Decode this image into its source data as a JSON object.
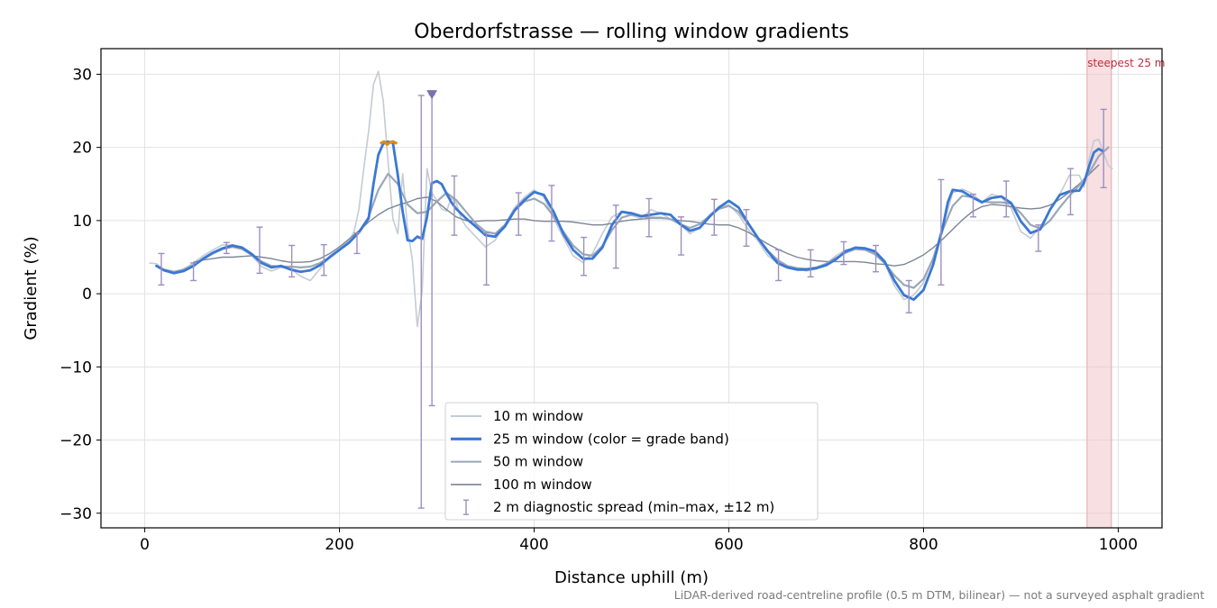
{
  "chart_data": {
    "type": "line",
    "title": "Oberdorfstrasse — rolling window gradients",
    "xlabel": "Distance uphill (m)",
    "ylabel": "Gradient (%)",
    "xlim": [
      -45,
      1045
    ],
    "ylim": [
      -32,
      33.5
    ],
    "x_ticks": [
      0,
      200,
      400,
      600,
      800,
      1000
    ],
    "y_ticks": [
      -30,
      -20,
      -10,
      0,
      10,
      20,
      30
    ],
    "x_tick_labels": [
      "0",
      "200",
      "400",
      "600",
      "800",
      "1000"
    ],
    "y_tick_labels": [
      "−30",
      "−20",
      "−10",
      "0",
      "10",
      "20",
      "30"
    ],
    "grid": true,
    "legend_position": "bottom-center",
    "footnote": "LiDAR-derived road-centreline profile (0.5 m DTM, bilinear) — not a surveyed asphalt gradient",
    "colors": {
      "w10": "#c4cbd3",
      "w25": "#3a78d4",
      "w25_steep": "#e08a14",
      "w50": "#9aa7b6",
      "w100": "#7c8694",
      "errorbar": "#9d8fc0",
      "marker": "#7f6fae",
      "highlight": "#f1c4cb",
      "highlight_text": "#c0303a"
    },
    "highlight": {
      "x_range": [
        968,
        993
      ],
      "label": "steepest 25 m"
    },
    "outlier_marker": {
      "x": 295,
      "y": 27.2
    },
    "series": [
      {
        "name": "10 m window",
        "x": [
          5,
          12,
          20,
          30,
          40,
          50,
          60,
          70,
          80,
          90,
          100,
          110,
          120,
          130,
          140,
          150,
          160,
          170,
          180,
          190,
          200,
          210,
          215,
          220,
          225,
          230,
          235,
          240,
          245,
          250,
          255,
          260,
          265,
          270,
          275,
          280,
          285,
          290,
          295,
          300,
          305,
          310,
          315,
          320,
          325,
          330,
          340,
          350,
          360,
          370,
          380,
          390,
          400,
          410,
          420,
          430,
          440,
          450,
          460,
          470,
          480,
          490,
          500,
          510,
          520,
          530,
          540,
          550,
          560,
          570,
          580,
          590,
          600,
          610,
          620,
          630,
          640,
          650,
          660,
          670,
          680,
          690,
          700,
          710,
          720,
          730,
          740,
          750,
          760,
          770,
          780,
          790,
          800,
          810,
          820,
          830,
          840,
          850,
          860,
          870,
          880,
          890,
          900,
          910,
          920,
          930,
          940,
          950,
          960,
          965,
          970,
          975,
          980,
          985,
          990,
          994
        ],
        "y": [
          4.2,
          4.1,
          3.2,
          2.8,
          3.4,
          4.2,
          5.2,
          6.0,
          6.7,
          6.6,
          6.1,
          5.2,
          3.7,
          3.1,
          3.6,
          3.4,
          2.4,
          1.8,
          3.4,
          5.2,
          6.2,
          7.3,
          8.5,
          11.6,
          17.2,
          22.2,
          28.6,
          30.4,
          26.4,
          18.0,
          10.2,
          8.2,
          16.4,
          8.9,
          4.5,
          -4.5,
          0.3,
          17.1,
          13.8,
          12.7,
          11.6,
          11.3,
          13.1,
          12.4,
          10.3,
          9.2,
          7.8,
          6.4,
          7.3,
          9.5,
          11.8,
          13.2,
          14.2,
          13.2,
          10.3,
          7.7,
          5.2,
          4.3,
          5.5,
          8.2,
          10.5,
          11.2,
          10.7,
          10.3,
          11.5,
          11.0,
          10.2,
          9.5,
          8.2,
          9.0,
          10.8,
          11.8,
          12.2,
          10.8,
          8.8,
          7.2,
          5.2,
          4.2,
          3.5,
          3.4,
          3.1,
          3.4,
          4.1,
          5.2,
          6.0,
          6.2,
          6.0,
          5.6,
          4.2,
          1.1,
          -0.8,
          -0.2,
          1.5,
          5.0,
          9.2,
          13.8,
          14.3,
          13.7,
          12.5,
          13.6,
          13.2,
          11.7,
          8.5,
          7.6,
          9.2,
          11.4,
          13.6,
          16.2,
          16.2,
          14.6,
          18.4,
          20.9,
          21.1,
          19.2,
          17.5,
          17.1
        ]
      },
      {
        "name": "25 m window (color = grade band)",
        "x": [
          12,
          20,
          30,
          40,
          50,
          60,
          70,
          80,
          90,
          100,
          110,
          120,
          130,
          140,
          150,
          160,
          170,
          180,
          190,
          200,
          210,
          220,
          230,
          235,
          240,
          245,
          250,
          255,
          260,
          265,
          270,
          275,
          280,
          285,
          290,
          295,
          300,
          305,
          310,
          315,
          320,
          330,
          340,
          350,
          360,
          370,
          380,
          390,
          400,
          410,
          420,
          430,
          440,
          450,
          460,
          470,
          480,
          490,
          500,
          510,
          520,
          530,
          540,
          550,
          560,
          570,
          580,
          590,
          600,
          610,
          620,
          630,
          640,
          650,
          660,
          670,
          680,
          690,
          700,
          710,
          720,
          730,
          740,
          750,
          760,
          770,
          780,
          790,
          800,
          810,
          820,
          825,
          830,
          840,
          850,
          860,
          870,
          880,
          890,
          900,
          910,
          920,
          930,
          940,
          950,
          960,
          965,
          970,
          975,
          980,
          984
        ],
        "y": [
          3.8,
          3.2,
          2.8,
          3.1,
          3.8,
          4.8,
          5.6,
          6.2,
          6.6,
          6.3,
          5.4,
          4.2,
          3.6,
          3.8,
          3.3,
          3.0,
          3.2,
          3.9,
          5.0,
          6.0,
          7.0,
          8.4,
          10.3,
          15.0,
          19.0,
          20.5,
          20.8,
          20.6,
          16.2,
          11.2,
          7.3,
          7.2,
          7.8,
          7.5,
          10.5,
          15.1,
          15.4,
          15.0,
          13.7,
          12.5,
          11.6,
          10.3,
          9.2,
          8.0,
          7.8,
          9.2,
          11.4,
          12.8,
          13.9,
          13.5,
          11.2,
          8.2,
          6.0,
          4.8,
          4.8,
          6.3,
          9.4,
          11.2,
          11.0,
          10.6,
          10.8,
          11.0,
          10.8,
          9.5,
          8.6,
          9.0,
          10.5,
          11.8,
          12.7,
          11.8,
          9.6,
          7.6,
          5.8,
          4.2,
          3.6,
          3.3,
          3.3,
          3.5,
          3.9,
          4.7,
          5.8,
          6.3,
          6.2,
          5.8,
          4.4,
          1.8,
          -0.2,
          -0.8,
          0.5,
          4.0,
          9.2,
          12.5,
          14.2,
          14.0,
          13.2,
          12.5,
          13.1,
          13.3,
          12.4,
          9.9,
          8.3,
          8.8,
          11.5,
          13.5,
          14.0,
          14.1,
          15.2,
          17.4,
          19.3,
          19.8,
          19.5
        ]
      },
      {
        "name": "50 m window",
        "x": [
          20,
          30,
          40,
          50,
          60,
          70,
          80,
          90,
          100,
          110,
          120,
          130,
          140,
          150,
          160,
          170,
          180,
          190,
          200,
          210,
          220,
          230,
          240,
          250,
          260,
          270,
          280,
          290,
          300,
          310,
          320,
          330,
          340,
          350,
          360,
          370,
          380,
          390,
          400,
          410,
          420,
          430,
          440,
          450,
          460,
          470,
          480,
          490,
          500,
          510,
          520,
          530,
          540,
          550,
          560,
          570,
          580,
          590,
          600,
          610,
          620,
          630,
          640,
          650,
          660,
          670,
          680,
          690,
          700,
          710,
          720,
          730,
          740,
          750,
          760,
          770,
          780,
          790,
          800,
          810,
          820,
          830,
          840,
          850,
          860,
          870,
          880,
          890,
          900,
          910,
          920,
          930,
          940,
          950,
          960,
          970,
          980,
          990
        ],
        "y": [
          3.3,
          3.0,
          3.3,
          3.9,
          4.7,
          5.5,
          6.1,
          6.4,
          6.1,
          5.3,
          4.4,
          3.8,
          3.7,
          3.7,
          3.6,
          3.7,
          4.2,
          5.0,
          6.0,
          7.0,
          8.5,
          10.5,
          14.2,
          16.4,
          15.0,
          12.2,
          11.0,
          11.2,
          12.6,
          13.8,
          12.8,
          11.2,
          9.6,
          8.5,
          8.2,
          9.4,
          11.4,
          12.6,
          13.0,
          12.3,
          10.6,
          8.5,
          6.6,
          5.4,
          5.2,
          6.5,
          8.7,
          10.4,
          10.8,
          10.6,
          10.4,
          10.4,
          10.2,
          9.5,
          9.0,
          9.5,
          10.6,
          11.6,
          12.0,
          11.2,
          9.5,
          7.6,
          5.9,
          4.6,
          3.8,
          3.5,
          3.4,
          3.6,
          4.1,
          4.9,
          5.6,
          6.1,
          6.0,
          5.4,
          4.2,
          2.5,
          1.2,
          0.8,
          2.0,
          4.8,
          8.8,
          12.0,
          13.4,
          13.2,
          12.6,
          12.5,
          12.5,
          12.3,
          11.0,
          9.4,
          8.9,
          10.0,
          11.8,
          13.4,
          14.8,
          16.5,
          18.8,
          20.0
        ]
      },
      {
        "name": "100 m window",
        "x": [
          50,
          60,
          70,
          80,
          90,
          100,
          110,
          120,
          130,
          140,
          150,
          160,
          170,
          180,
          190,
          200,
          210,
          220,
          230,
          240,
          250,
          260,
          270,
          280,
          290,
          300,
          310,
          320,
          330,
          340,
          350,
          360,
          370,
          380,
          390,
          400,
          410,
          420,
          430,
          440,
          450,
          460,
          470,
          480,
          490,
          500,
          510,
          520,
          530,
          540,
          550,
          560,
          570,
          580,
          590,
          600,
          610,
          620,
          630,
          640,
          650,
          660,
          670,
          680,
          690,
          700,
          710,
          720,
          730,
          740,
          750,
          760,
          770,
          780,
          790,
          800,
          810,
          820,
          830,
          840,
          850,
          860,
          870,
          880,
          890,
          900,
          910,
          920,
          930,
          940,
          950,
          960,
          970,
          980
        ],
        "y": [
          4.3,
          4.6,
          4.8,
          5.0,
          5.0,
          5.1,
          5.2,
          5.0,
          4.8,
          4.5,
          4.3,
          4.3,
          4.4,
          4.8,
          5.5,
          6.4,
          7.5,
          8.6,
          9.8,
          10.8,
          11.6,
          12.1,
          12.5,
          13.0,
          13.2,
          12.6,
          11.5,
          10.5,
          10.0,
          9.9,
          10.0,
          10.0,
          10.1,
          10.2,
          10.2,
          10.0,
          9.9,
          9.9,
          9.9,
          9.8,
          9.6,
          9.4,
          9.4,
          9.6,
          9.9,
          10.1,
          10.2,
          10.3,
          10.3,
          10.2,
          10.0,
          9.9,
          9.7,
          9.5,
          9.4,
          9.4,
          9.0,
          8.4,
          7.6,
          6.8,
          6.1,
          5.5,
          5.0,
          4.7,
          4.5,
          4.4,
          4.4,
          4.4,
          4.4,
          4.3,
          4.1,
          4.0,
          3.8,
          4.0,
          4.6,
          5.3,
          6.3,
          7.5,
          8.8,
          10.1,
          11.2,
          11.9,
          12.2,
          12.1,
          11.9,
          11.7,
          11.6,
          11.7,
          12.1,
          12.9,
          13.9,
          15.0,
          16.3,
          17.6
        ]
      }
    ],
    "steep_segment": {
      "x": [
        243,
        246,
        249,
        252,
        255,
        258
      ],
      "y": [
        20.6,
        20.8,
        20.4,
        20.7,
        20.8,
        20.6
      ]
    },
    "diagnostic_spread": {
      "name": "2 m diagnostic spread (min–max, ±12 m)",
      "x": [
        17,
        50,
        84,
        118,
        151,
        184,
        218,
        284,
        295,
        318,
        351,
        384,
        418,
        451,
        484,
        518,
        551,
        585,
        618,
        651,
        684,
        718,
        751,
        785,
        818,
        851,
        885,
        918,
        951,
        985
      ],
      "low": [
        1.2,
        1.8,
        5.5,
        2.8,
        2.3,
        2.5,
        5.5,
        -29.3,
        -15.3,
        8.0,
        1.2,
        8.0,
        7.2,
        2.5,
        3.5,
        7.8,
        5.3,
        8.0,
        6.5,
        1.8,
        2.3,
        4.0,
        3.0,
        -2.6,
        1.2,
        10.5,
        10.5,
        5.8,
        10.8,
        14.5
      ],
      "high": [
        5.5,
        4.2,
        7.0,
        9.1,
        6.6,
        6.7,
        8.3,
        27.1,
        27.2,
        16.1,
        8.3,
        13.8,
        14.8,
        7.7,
        12.1,
        13.0,
        10.5,
        12.9,
        11.5,
        6.0,
        6.0,
        7.1,
        6.6,
        1.8,
        15.6,
        13.6,
        15.4,
        9.4,
        17.1,
        25.2
      ]
    }
  }
}
